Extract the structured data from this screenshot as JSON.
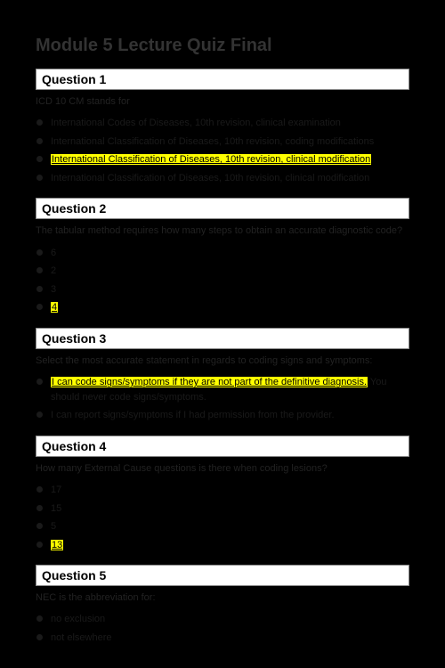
{
  "title": "Module 5 Lecture Quiz Final",
  "questions": [
    {
      "header": "Question 1",
      "prompt": "ICD 10 CM stands for",
      "options": [
        {
          "text": "International Codes of Diseases, 10th revision, clinical examination",
          "highlight": false
        },
        {
          "text": "International Classification of Diseases, 10th revision, coding modifications",
          "highlight": false
        },
        {
          "text": "International Classification of Diseases, 10th revision, clinical modification",
          "highlight": true
        },
        {
          "text": "International Classification of Diseases, 10th revision, clinical modification",
          "highlight": false
        }
      ]
    },
    {
      "header": "Question 2",
      "prompt": "The tabular method requires how many steps to obtain an accurate diagnostic code?",
      "options": [
        {
          "text": "6",
          "highlight": false
        },
        {
          "text": "2",
          "highlight": false
        },
        {
          "text": "3",
          "highlight": false
        },
        {
          "text": "4",
          "highlight": true
        }
      ]
    },
    {
      "header": "Question 3",
      "prompt": "Select the most accurate statement in regards to coding signs and symptoms:",
      "options": [
        {
          "text": "I can code signs/symptoms if they are not part of the definitive diagnosis.",
          "highlight": true,
          "trailing": "You should never code signs/symptoms."
        },
        {
          "text": "I can report signs/symptoms if I had permission from the provider.",
          "highlight": false
        }
      ]
    },
    {
      "header": "Question 4",
      "prompt": "How many External Cause questions is there when coding lesions?",
      "options": [
        {
          "text": "17",
          "highlight": false
        },
        {
          "text": "15",
          "highlight": false
        },
        {
          "text": "5",
          "highlight": false
        },
        {
          "text": "13",
          "highlight": true
        }
      ]
    },
    {
      "header": "Question 5",
      "prompt": "NEC is the abbreviation for:",
      "options": [
        {
          "text": "no exclusion",
          "highlight": false
        },
        {
          "text": "not elsewhere",
          "highlight": false
        }
      ]
    }
  ],
  "colors": {
    "background": "#000000",
    "header_bg": "#ffffff",
    "highlight": "#ffff00",
    "text_dim": "#1a1a1a"
  },
  "fonts": {
    "title_size": 20,
    "header_size": 14,
    "body_size": 11
  }
}
